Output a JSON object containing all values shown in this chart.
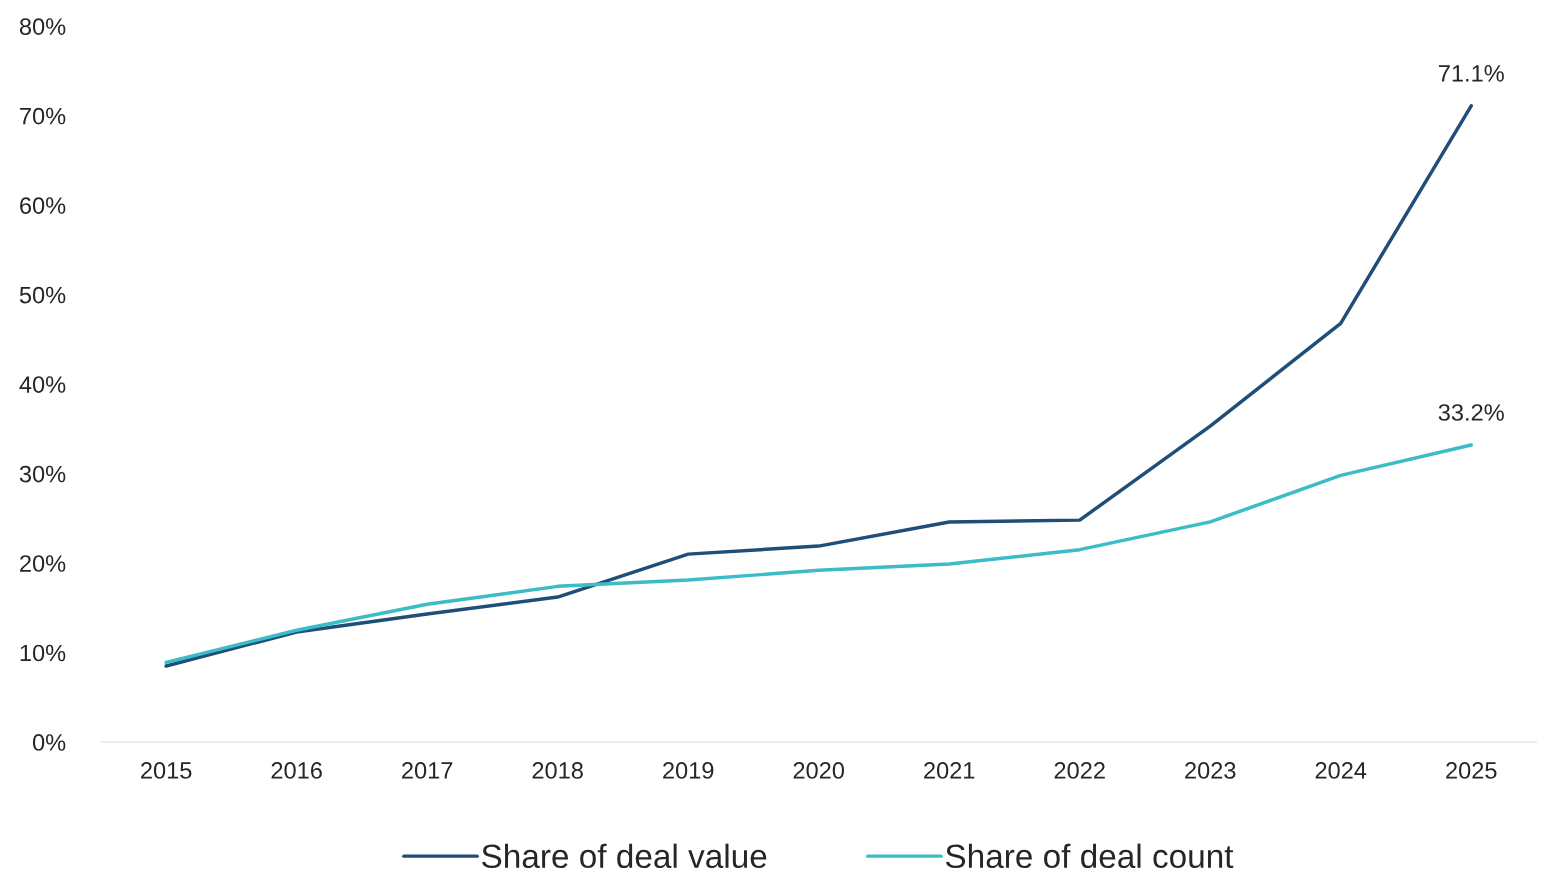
{
  "chart_data": {
    "type": "line",
    "categories": [
      "2015",
      "2016",
      "2017",
      "2018",
      "2019",
      "2020",
      "2021",
      "2022",
      "2023",
      "2024",
      "2025"
    ],
    "series": [
      {
        "name": "Share of deal value",
        "color": "#1f4e79",
        "values": [
          8.5,
          12.3,
          14.3,
          16.2,
          21.0,
          21.9,
          24.6,
          24.8,
          35.3,
          46.8,
          71.1
        ],
        "value_labels": [
          null,
          null,
          null,
          null,
          null,
          null,
          null,
          null,
          null,
          null,
          "71.1%"
        ]
      },
      {
        "name": "Share of deal count",
        "color": "#3bbcc6",
        "values": [
          8.9,
          12.5,
          15.4,
          17.4,
          18.1,
          19.2,
          19.9,
          21.5,
          24.6,
          29.8,
          33.2
        ],
        "value_labels": [
          null,
          null,
          null,
          null,
          null,
          null,
          null,
          null,
          null,
          null,
          "33.2%"
        ]
      }
    ],
    "ylim": [
      0,
      80
    ],
    "yticks": [
      {
        "value": 0,
        "label": "0%"
      },
      {
        "value": 10,
        "label": "10%"
      },
      {
        "value": 20,
        "label": "20%"
      },
      {
        "value": 30,
        "label": "30%"
      },
      {
        "value": 40,
        "label": "40%"
      },
      {
        "value": 50,
        "label": "50%"
      },
      {
        "value": 60,
        "label": "60%"
      },
      {
        "value": 70,
        "label": "70%"
      },
      {
        "value": 80,
        "label": "80%"
      }
    ],
    "grid": false,
    "legend": "bottom",
    "marker": "none",
    "line_style": "solid"
  }
}
